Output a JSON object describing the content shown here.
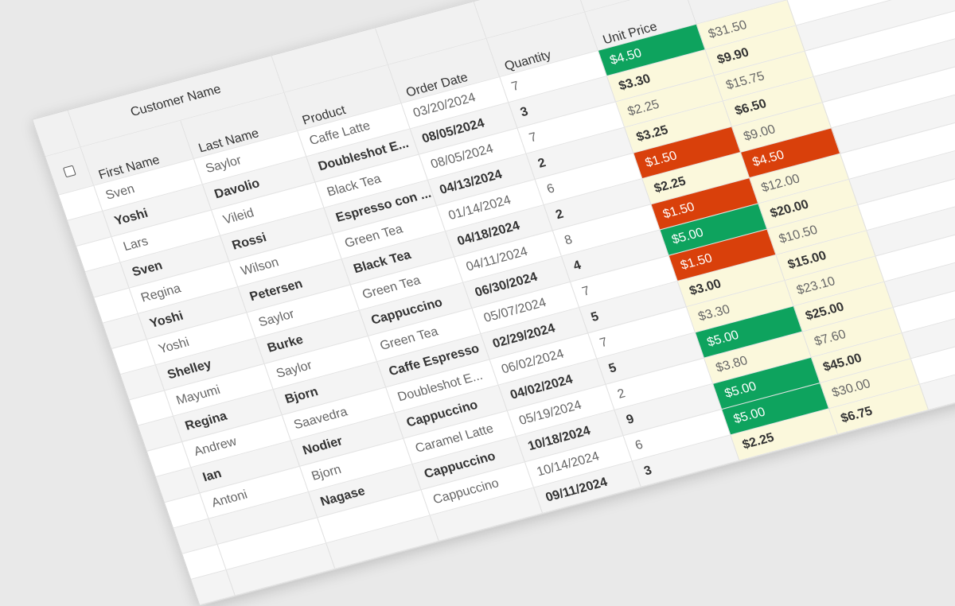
{
  "grid": {
    "group_header": "Customer Name",
    "columns": [
      "First Name",
      "Last Name",
      "Product",
      "Order Date",
      "Quantity",
      "Unit Price"
    ],
    "rows": [
      {
        "first": "Sven",
        "last": "Saylor",
        "product": "Caffe Latte",
        "date": "03/20/2024",
        "qty": 7,
        "price": "$4.50",
        "total": "$31.50",
        "price_color": "#0ea35e"
      },
      {
        "first": "Yoshi",
        "last": "Davolio",
        "product": "Doubleshot E...",
        "date": "08/05/2024",
        "qty": 3,
        "price": "$3.30",
        "total": "$9.90"
      },
      {
        "first": "Lars",
        "last": "Vileid",
        "product": "Black Tea",
        "date": "08/05/2024",
        "qty": 7,
        "price": "$2.25",
        "total": "$15.75"
      },
      {
        "first": "Sven",
        "last": "Rossi",
        "product": "Espresso con ...",
        "date": "04/13/2024",
        "qty": 2,
        "price": "$3.25",
        "total": "$6.50"
      },
      {
        "first": "Regina",
        "last": "Wilson",
        "product": "Green Tea",
        "date": "01/14/2024",
        "qty": 6,
        "price": "$1.50",
        "total": "$9.00",
        "price_color": "#d9400b"
      },
      {
        "first": "Yoshi",
        "last": "Petersen",
        "product": "Black Tea",
        "date": "04/18/2024",
        "qty": 2,
        "price": "$2.25",
        "total": "$4.50",
        "total_color": "#d9400b"
      },
      {
        "first": "Yoshi",
        "last": "Saylor",
        "product": "Green Tea",
        "date": "04/11/2024",
        "qty": 8,
        "price": "$1.50",
        "total": "$12.00",
        "price_color": "#d9400b"
      },
      {
        "first": "Shelley",
        "last": "Burke",
        "product": "Cappuccino",
        "date": "06/30/2024",
        "qty": 4,
        "price": "$5.00",
        "total": "$20.00",
        "price_color": "#0ea35e"
      },
      {
        "first": "Mayumi",
        "last": "Saylor",
        "product": "Green Tea",
        "date": "05/07/2024",
        "qty": 7,
        "price": "$1.50",
        "total": "$10.50",
        "price_color": "#d9400b"
      },
      {
        "first": "Regina",
        "last": "Bjorn",
        "product": "Caffe Espresso",
        "date": "02/29/2024",
        "qty": 5,
        "price": "$3.00",
        "total": "$15.00"
      },
      {
        "first": "Andrew",
        "last": "Saavedra",
        "product": "Doubleshot E...",
        "date": "06/02/2024",
        "qty": 7,
        "price": "$3.30",
        "total": "$23.10"
      },
      {
        "first": "Ian",
        "last": "Nodier",
        "product": "Cappuccino",
        "date": "04/02/2024",
        "qty": 5,
        "price": "$5.00",
        "total": "$25.00",
        "price_color": "#0ea35e"
      },
      {
        "first": "Antoni",
        "last": "Bjorn",
        "product": "Caramel Latte",
        "date": "05/19/2024",
        "qty": 2,
        "price": "$3.80",
        "total": "$7.60"
      },
      {
        "last": "Nagase",
        "product": "Cappuccino",
        "date": "10/18/2024",
        "qty": 9,
        "price": "$5.00",
        "total": "$45.00",
        "price_color": "#0ea35e"
      },
      {
        "product": "Cappuccino",
        "date": "10/14/2024",
        "qty": 6,
        "price": "$5.00",
        "total": "$30.00",
        "price_color": "#0ea35e"
      },
      {
        "date": "09/11/2024",
        "qty": 3,
        "price": "$2.25",
        "total": "$6.75"
      }
    ]
  }
}
